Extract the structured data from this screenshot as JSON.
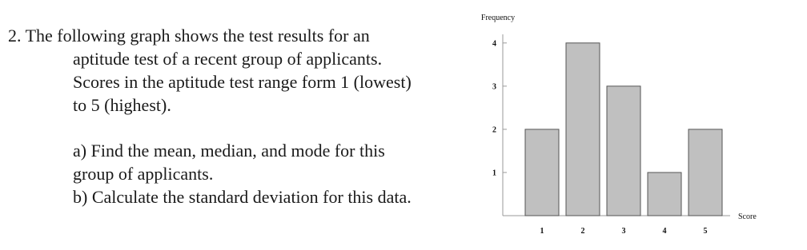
{
  "question": {
    "intro": [
      "2. The following graph shows the test results for an",
      "aptitude test of a recent group of applicants.",
      "Scores in the aptitude test range form 1 (lowest)",
      "to 5 (highest)."
    ],
    "parts": [
      "a) Find the mean, median, and mode for this",
      "group of  applicants.",
      "b) Calculate the standard deviation for this data."
    ]
  },
  "chart_data": {
    "type": "bar",
    "x_label": "Score",
    "y_label": "Frequency",
    "categories": [
      "1",
      "2",
      "3",
      "4",
      "5"
    ],
    "values": [
      2,
      4,
      3,
      1,
      2
    ],
    "color": "#c0c0c0",
    "ylim": [
      0,
      4.2
    ],
    "yticks": [
      1,
      2,
      3,
      4
    ],
    "grid": false
  }
}
